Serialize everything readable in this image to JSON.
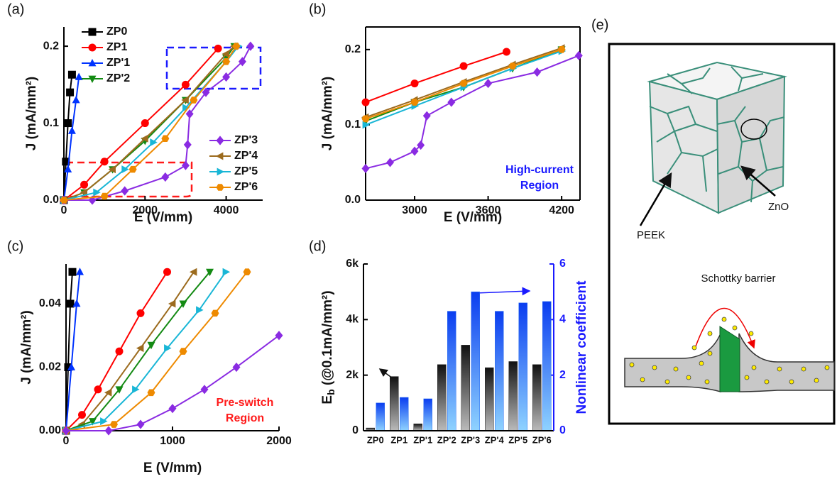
{
  "panel_labels": [
    "(a)",
    "(b)",
    "(c)",
    "(d)",
    "(e)"
  ],
  "chart_data": [
    {
      "type": "line",
      "xlabel": "E (V/mm)",
      "ylabel": "J (mA/mm²)",
      "xlim": [
        0,
        4900
      ],
      "ylim": [
        0,
        0.225
      ],
      "xticks": [
        0,
        2000,
        4000
      ],
      "yticks": [
        {
          "value": 0,
          "label": "0.0"
        },
        0.1,
        0.2
      ],
      "series": [
        {
          "name": "ZP0",
          "color": "#000000",
          "marker": "square",
          "x": [
            0,
            50,
            100,
            150,
            200
          ],
          "values": [
            0,
            0.05,
            0.1,
            0.14,
            0.163
          ]
        },
        {
          "name": "ZP1",
          "color": "#ff0000",
          "marker": "circle",
          "x": [
            0,
            500,
            1000,
            2000,
            3000,
            3800
          ],
          "values": [
            0,
            0.02,
            0.05,
            0.1,
            0.15,
            0.197
          ]
        },
        {
          "name": "ZP'1",
          "color": "#0033ff",
          "marker": "triangle-up",
          "x": [
            0,
            100,
            200,
            300,
            370
          ],
          "values": [
            0,
            0.04,
            0.09,
            0.13,
            0.16
          ]
        },
        {
          "name": "ZP'2",
          "color": "#138a13",
          "marker": "triangle-down",
          "x": [
            0,
            500,
            1200,
            2000,
            3000,
            4000,
            4200
          ],
          "values": [
            0,
            0.01,
            0.04,
            0.077,
            0.13,
            0.185,
            0.2
          ]
        },
        {
          "name": "ZP'3",
          "color": "#8a2be2",
          "marker": "diamond",
          "x": [
            0,
            700,
            1500,
            2500,
            3000,
            3050,
            3100,
            3500,
            4000,
            4400,
            4600
          ],
          "values": [
            0,
            0,
            0.012,
            0.03,
            0.045,
            0.072,
            0.112,
            0.14,
            0.16,
            0.18,
            0.2
          ]
        },
        {
          "name": "ZP'4",
          "color": "#9c6b1e",
          "marker": "triangle-left",
          "x": [
            0,
            500,
            1200,
            2000,
            3000,
            4000,
            4200
          ],
          "values": [
            0,
            0.01,
            0.04,
            0.08,
            0.13,
            0.19,
            0.2
          ]
        },
        {
          "name": "ZP'5",
          "color": "#19b6d6",
          "marker": "triangle-right",
          "x": [
            0,
            800,
            1500,
            2200,
            3000,
            4000,
            4300
          ],
          "values": [
            0,
            0.01,
            0.04,
            0.075,
            0.12,
            0.18,
            0.2
          ]
        },
        {
          "name": "ZP'6",
          "color": "#ee8a00",
          "marker": "hexagon",
          "x": [
            0,
            1000,
            1700,
            2500,
            3200,
            4000,
            4250
          ],
          "values": [
            0,
            0.005,
            0.04,
            0.08,
            0.13,
            0.18,
            0.2
          ]
        }
      ]
    },
    {
      "type": "line",
      "xlabel": "E (V/mm)",
      "ylabel": "J (mA/mm²)",
      "xlim": [
        2600,
        4350
      ],
      "ylim": [
        0,
        0.23
      ],
      "xticks": [
        3000,
        3600,
        4200
      ],
      "yticks": [
        {
          "value": 0,
          "label": "0.0"
        },
        0.1,
        0.2
      ],
      "annotation": [
        "High-current",
        "Region"
      ],
      "annotation_color": "#1a1aff",
      "series": [
        {
          "color": "#ff0000",
          "marker": "circle",
          "x": [
            2600,
            3000,
            3400,
            3750
          ],
          "values": [
            0.13,
            0.155,
            0.178,
            0.197
          ]
        },
        {
          "color": "#138a13",
          "marker": "triangle-down",
          "x": [
            2600,
            3000,
            3400,
            3800,
            4200
          ],
          "values": [
            0.105,
            0.13,
            0.15,
            0.175,
            0.2
          ]
        },
        {
          "color": "#8a2be2",
          "marker": "diamond",
          "x": [
            2600,
            2800,
            3000,
            3050,
            3100,
            3300,
            3600,
            4000,
            4340
          ],
          "values": [
            0.042,
            0.05,
            0.065,
            0.073,
            0.112,
            0.13,
            0.155,
            0.17,
            0.192
          ]
        },
        {
          "color": "#9c6b1e",
          "marker": "triangle-left",
          "x": [
            2600,
            3000,
            3400,
            3800,
            4200
          ],
          "values": [
            0.11,
            0.133,
            0.157,
            0.18,
            0.202
          ]
        },
        {
          "color": "#19b6d6",
          "marker": "triangle-right",
          "x": [
            2600,
            3000,
            3400,
            3800,
            4200
          ],
          "values": [
            0.1,
            0.125,
            0.15,
            0.175,
            0.198
          ]
        },
        {
          "color": "#ee8a00",
          "marker": "hexagon",
          "x": [
            2600,
            3000,
            3400,
            3800,
            4200
          ],
          "values": [
            0.108,
            0.13,
            0.155,
            0.178,
            0.2
          ]
        }
      ]
    },
    {
      "type": "line",
      "xlabel": "E (V/mm)",
      "ylabel": "J (mA/mm²)",
      "xlim": [
        0,
        2000
      ],
      "ylim": [
        0,
        0.0525
      ],
      "xticks": [
        0,
        1000,
        2000
      ],
      "yticks": [
        {
          "value": 0,
          "label": "0.00"
        },
        0.02,
        0.04
      ],
      "annotation": [
        "Pre-switch",
        "Region"
      ],
      "annotation_color": "#ff1a1a",
      "series": [
        {
          "color": "#000000",
          "marker": "square",
          "x": [
            0,
            20,
            40,
            60
          ],
          "values": [
            0,
            0.02,
            0.04,
            0.05
          ]
        },
        {
          "color": "#0033ff",
          "marker": "triangle-up",
          "x": [
            0,
            50,
            100,
            130
          ],
          "values": [
            0,
            0.02,
            0.04,
            0.05
          ]
        },
        {
          "color": "#ff0000",
          "marker": "circle",
          "x": [
            0,
            150,
            300,
            500,
            700,
            950
          ],
          "values": [
            0,
            0.005,
            0.013,
            0.025,
            0.037,
            0.05
          ]
        },
        {
          "color": "#9c6b1e",
          "marker": "triangle-left",
          "x": [
            0,
            150,
            400,
            700,
            1000,
            1200
          ],
          "values": [
            0,
            0.002,
            0.012,
            0.026,
            0.04,
            0.05
          ]
        },
        {
          "color": "#138a13",
          "marker": "triangle-down",
          "x": [
            0,
            250,
            500,
            800,
            1100,
            1350
          ],
          "values": [
            0,
            0.003,
            0.013,
            0.027,
            0.04,
            0.05
          ]
        },
        {
          "color": "#19b6d6",
          "marker": "triangle-right",
          "x": [
            0,
            350,
            650,
            950,
            1250,
            1500
          ],
          "values": [
            0,
            0.003,
            0.013,
            0.026,
            0.038,
            0.05
          ]
        },
        {
          "color": "#ee8a00",
          "marker": "hexagon",
          "x": [
            0,
            450,
            800,
            1100,
            1400,
            1700
          ],
          "values": [
            0,
            0.002,
            0.012,
            0.025,
            0.037,
            0.05
          ]
        },
        {
          "color": "#8a2be2",
          "marker": "diamond",
          "x": [
            0,
            400,
            700,
            1000,
            1300,
            1600,
            2000
          ],
          "values": [
            0,
            0,
            0.002,
            0.007,
            0.013,
            0.02,
            0.03
          ]
        }
      ]
    },
    {
      "type": "bar",
      "ylabel_parts": [
        "E",
        "b",
        " (@0.1mA/mm²)"
      ],
      "y2label": "Nonlinear coefficient",
      "categories": [
        "ZP0",
        "ZP1",
        "ZP'1",
        "ZP'2",
        "ZP'3",
        "ZP'4",
        "ZP'5",
        "ZP'6"
      ],
      "ylim": [
        0,
        6000
      ],
      "yticks": [
        0,
        {
          "value": 2000,
          "label": "2k"
        },
        {
          "value": 4000,
          "label": "4k"
        },
        {
          "value": 6000,
          "label": "6k"
        }
      ],
      "y2lim": [
        0,
        6
      ],
      "y2ticks": [
        0,
        2,
        4,
        6
      ],
      "y2color": "#1a1aff",
      "series": [
        {
          "color": "#222222",
          "values": [
            100,
            1950,
            250,
            2380,
            3080,
            2270,
            2490,
            2380
          ]
        },
        {
          "color": "#2a6cf0",
          "axis": "y2",
          "values": [
            1.0,
            1.2,
            1.15,
            4.3,
            5.0,
            4.3,
            4.6,
            4.65
          ]
        }
      ]
    }
  ],
  "diagram": {
    "labels": {
      "peek": "PEEK",
      "zno": "ZnO",
      "barrier": "Schottky barrier"
    }
  }
}
